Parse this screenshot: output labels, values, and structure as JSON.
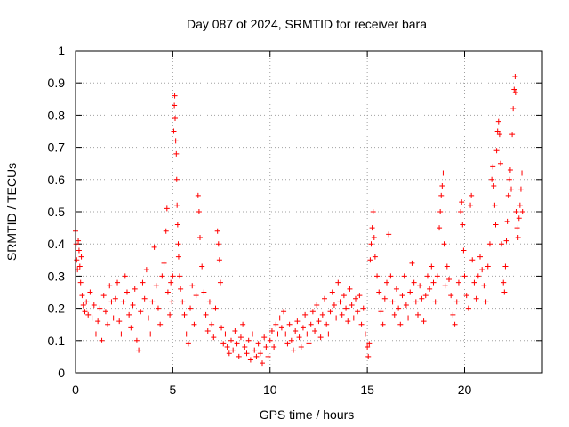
{
  "chart_data": {
    "type": "scatter",
    "title": "Day 087 of 2024, SRMTID for receiver bara",
    "xlabel": "GPS time / hours",
    "ylabel": "SRMTID / TECUs",
    "xlim": [
      0,
      24
    ],
    "ylim": [
      0,
      1
    ],
    "xticks": [
      0,
      5,
      10,
      15,
      20
    ],
    "yticks": [
      0,
      0.1,
      0.2,
      0.3,
      0.4,
      0.5,
      0.6,
      0.7,
      0.8,
      0.9,
      1
    ],
    "grid": true,
    "marker": "+",
    "series_color": "#ff0000",
    "series": [
      {
        "name": "SRMTID",
        "points": [
          [
            0.0,
            0.44
          ],
          [
            0.03,
            0.4
          ],
          [
            0.06,
            0.35
          ],
          [
            0.1,
            0.32
          ],
          [
            0.14,
            0.41
          ],
          [
            0.18,
            0.38
          ],
          [
            0.22,
            0.33
          ],
          [
            0.26,
            0.28
          ],
          [
            0.3,
            0.36
          ],
          [
            0.34,
            0.24
          ],
          [
            0.4,
            0.21
          ],
          [
            0.48,
            0.19
          ],
          [
            0.56,
            0.22
          ],
          [
            0.65,
            0.18
          ],
          [
            0.75,
            0.25
          ],
          [
            0.85,
            0.17
          ],
          [
            0.95,
            0.21
          ],
          [
            1.05,
            0.12
          ],
          [
            1.15,
            0.16
          ],
          [
            1.25,
            0.2
          ],
          [
            1.35,
            0.1
          ],
          [
            1.45,
            0.24
          ],
          [
            1.55,
            0.19
          ],
          [
            1.65,
            0.15
          ],
          [
            1.75,
            0.27
          ],
          [
            1.85,
            0.22
          ],
          [
            1.95,
            0.17
          ],
          [
            2.05,
            0.23
          ],
          [
            2.15,
            0.28
          ],
          [
            2.25,
            0.16
          ],
          [
            2.35,
            0.12
          ],
          [
            2.45,
            0.22
          ],
          [
            2.55,
            0.3
          ],
          [
            2.65,
            0.25
          ],
          [
            2.75,
            0.18
          ],
          [
            2.85,
            0.14
          ],
          [
            2.95,
            0.21
          ],
          [
            3.05,
            0.26
          ],
          [
            3.15,
            0.1
          ],
          [
            3.25,
            0.07
          ],
          [
            3.35,
            0.19
          ],
          [
            3.45,
            0.28
          ],
          [
            3.55,
            0.23
          ],
          [
            3.65,
            0.32
          ],
          [
            3.75,
            0.17
          ],
          [
            3.85,
            0.12
          ],
          [
            3.95,
            0.22
          ],
          [
            4.05,
            0.39
          ],
          [
            4.15,
            0.27
          ],
          [
            4.25,
            0.2
          ],
          [
            4.35,
            0.15
          ],
          [
            4.45,
            0.3
          ],
          [
            4.55,
            0.34
          ],
          [
            4.65,
            0.44
          ],
          [
            4.7,
            0.51
          ],
          [
            4.75,
            0.25
          ],
          [
            4.85,
            0.18
          ],
          [
            4.9,
            0.28
          ],
          [
            4.95,
            0.22
          ],
          [
            5.0,
            0.3
          ],
          [
            5.05,
            0.75
          ],
          [
            5.08,
            0.83
          ],
          [
            5.1,
            0.86
          ],
          [
            5.12,
            0.79
          ],
          [
            5.15,
            0.72
          ],
          [
            5.18,
            0.68
          ],
          [
            5.2,
            0.6
          ],
          [
            5.22,
            0.52
          ],
          [
            5.25,
            0.46
          ],
          [
            5.28,
            0.4
          ],
          [
            5.3,
            0.36
          ],
          [
            5.35,
            0.3
          ],
          [
            5.4,
            0.26
          ],
          [
            5.5,
            0.22
          ],
          [
            5.6,
            0.18
          ],
          [
            5.7,
            0.12
          ],
          [
            5.8,
            0.09
          ],
          [
            5.9,
            0.2
          ],
          [
            6.0,
            0.27
          ],
          [
            6.1,
            0.15
          ],
          [
            6.2,
            0.24
          ],
          [
            6.3,
            0.55
          ],
          [
            6.35,
            0.5
          ],
          [
            6.4,
            0.42
          ],
          [
            6.5,
            0.33
          ],
          [
            6.6,
            0.25
          ],
          [
            6.7,
            0.18
          ],
          [
            6.8,
            0.13
          ],
          [
            6.9,
            0.22
          ],
          [
            7.0,
            0.15
          ],
          [
            7.1,
            0.11
          ],
          [
            7.2,
            0.2
          ],
          [
            7.3,
            0.44
          ],
          [
            7.35,
            0.4
          ],
          [
            7.4,
            0.35
          ],
          [
            7.45,
            0.28
          ],
          [
            7.5,
            0.14
          ],
          [
            7.6,
            0.09
          ],
          [
            7.7,
            0.12
          ],
          [
            7.8,
            0.08
          ],
          [
            7.9,
            0.06
          ],
          [
            8.0,
            0.1
          ],
          [
            8.1,
            0.07
          ],
          [
            8.2,
            0.13
          ],
          [
            8.3,
            0.09
          ],
          [
            8.4,
            0.05
          ],
          [
            8.5,
            0.11
          ],
          [
            8.6,
            0.15
          ],
          [
            8.7,
            0.08
          ],
          [
            8.8,
            0.06
          ],
          [
            8.9,
            0.1
          ],
          [
            9.0,
            0.04
          ],
          [
            9.1,
            0.12
          ],
          [
            9.2,
            0.07
          ],
          [
            9.3,
            0.05
          ],
          [
            9.4,
            0.09
          ],
          [
            9.5,
            0.06
          ],
          [
            9.6,
            0.03
          ],
          [
            9.7,
            0.11
          ],
          [
            9.8,
            0.08
          ],
          [
            9.9,
            0.05
          ],
          [
            10.0,
            0.1
          ],
          [
            10.1,
            0.13
          ],
          [
            10.2,
            0.08
          ],
          [
            10.3,
            0.15
          ],
          [
            10.4,
            0.12
          ],
          [
            10.5,
            0.17
          ],
          [
            10.6,
            0.14
          ],
          [
            10.7,
            0.19
          ],
          [
            10.8,
            0.12
          ],
          [
            10.9,
            0.09
          ],
          [
            11.0,
            0.15
          ],
          [
            11.1,
            0.1
          ],
          [
            11.2,
            0.07
          ],
          [
            11.3,
            0.13
          ],
          [
            11.4,
            0.16
          ],
          [
            11.5,
            0.11
          ],
          [
            11.6,
            0.08
          ],
          [
            11.7,
            0.14
          ],
          [
            11.8,
            0.18
          ],
          [
            11.9,
            0.12
          ],
          [
            12.0,
            0.09
          ],
          [
            12.1,
            0.15
          ],
          [
            12.2,
            0.19
          ],
          [
            12.3,
            0.13
          ],
          [
            12.4,
            0.21
          ],
          [
            12.5,
            0.16
          ],
          [
            12.6,
            0.11
          ],
          [
            12.7,
            0.18
          ],
          [
            12.8,
            0.23
          ],
          [
            12.9,
            0.15
          ],
          [
            13.0,
            0.12
          ],
          [
            13.1,
            0.19
          ],
          [
            13.2,
            0.25
          ],
          [
            13.3,
            0.21
          ],
          [
            13.4,
            0.17
          ],
          [
            13.5,
            0.28
          ],
          [
            13.6,
            0.22
          ],
          [
            13.7,
            0.18
          ],
          [
            13.8,
            0.24
          ],
          [
            13.9,
            0.2
          ],
          [
            14.0,
            0.16
          ],
          [
            14.1,
            0.26
          ],
          [
            14.2,
            0.21
          ],
          [
            14.3,
            0.17
          ],
          [
            14.4,
            0.23
          ],
          [
            14.5,
            0.19
          ],
          [
            14.6,
            0.24
          ],
          [
            14.7,
            0.15
          ],
          [
            14.8,
            0.2
          ],
          [
            14.9,
            0.12
          ],
          [
            15.0,
            0.08
          ],
          [
            15.05,
            0.05
          ],
          [
            15.1,
            0.09
          ],
          [
            15.15,
            0.35
          ],
          [
            15.2,
            0.4
          ],
          [
            15.25,
            0.45
          ],
          [
            15.3,
            0.5
          ],
          [
            15.35,
            0.42
          ],
          [
            15.4,
            0.36
          ],
          [
            15.5,
            0.3
          ],
          [
            15.6,
            0.25
          ],
          [
            15.7,
            0.19
          ],
          [
            15.8,
            0.15
          ],
          [
            15.9,
            0.23
          ],
          [
            16.0,
            0.28
          ],
          [
            16.1,
            0.43
          ],
          [
            16.2,
            0.3
          ],
          [
            16.3,
            0.22
          ],
          [
            16.4,
            0.18
          ],
          [
            16.5,
            0.26
          ],
          [
            16.6,
            0.2
          ],
          [
            16.7,
            0.15
          ],
          [
            16.8,
            0.24
          ],
          [
            16.9,
            0.3
          ],
          [
            17.0,
            0.21
          ],
          [
            17.1,
            0.17
          ],
          [
            17.2,
            0.25
          ],
          [
            17.3,
            0.34
          ],
          [
            17.4,
            0.28
          ],
          [
            17.5,
            0.22
          ],
          [
            17.6,
            0.18
          ],
          [
            17.7,
            0.27
          ],
          [
            17.8,
            0.23
          ],
          [
            17.9,
            0.16
          ],
          [
            18.0,
            0.24
          ],
          [
            18.1,
            0.3
          ],
          [
            18.2,
            0.26
          ],
          [
            18.3,
            0.33
          ],
          [
            18.4,
            0.28
          ],
          [
            18.5,
            0.22
          ],
          [
            18.6,
            0.3
          ],
          [
            18.7,
            0.45
          ],
          [
            18.75,
            0.5
          ],
          [
            18.8,
            0.55
          ],
          [
            18.85,
            0.58
          ],
          [
            18.9,
            0.62
          ],
          [
            18.95,
            0.4
          ],
          [
            19.0,
            0.27
          ],
          [
            19.1,
            0.33
          ],
          [
            19.2,
            0.29
          ],
          [
            19.3,
            0.24
          ],
          [
            19.4,
            0.18
          ],
          [
            19.5,
            0.15
          ],
          [
            19.6,
            0.22
          ],
          [
            19.7,
            0.28
          ],
          [
            19.8,
            0.5
          ],
          [
            19.85,
            0.53
          ],
          [
            19.9,
            0.46
          ],
          [
            19.95,
            0.38
          ],
          [
            20.0,
            0.3
          ],
          [
            20.1,
            0.24
          ],
          [
            20.2,
            0.2
          ],
          [
            20.3,
            0.52
          ],
          [
            20.35,
            0.55
          ],
          [
            20.4,
            0.35
          ],
          [
            20.5,
            0.28
          ],
          [
            20.6,
            0.23
          ],
          [
            20.7,
            0.3
          ],
          [
            20.8,
            0.36
          ],
          [
            20.9,
            0.32
          ],
          [
            21.0,
            0.27
          ],
          [
            21.1,
            0.22
          ],
          [
            21.2,
            0.33
          ],
          [
            21.3,
            0.4
          ],
          [
            21.4,
            0.6
          ],
          [
            21.45,
            0.64
          ],
          [
            21.5,
            0.58
          ],
          [
            21.55,
            0.52
          ],
          [
            21.6,
            0.46
          ],
          [
            21.65,
            0.69
          ],
          [
            21.7,
            0.75
          ],
          [
            21.75,
            0.78
          ],
          [
            21.8,
            0.74
          ],
          [
            21.85,
            0.65
          ],
          [
            21.9,
            0.4
          ],
          [
            22.0,
            0.28
          ],
          [
            22.05,
            0.25
          ],
          [
            22.1,
            0.33
          ],
          [
            22.15,
            0.41
          ],
          [
            22.2,
            0.47
          ],
          [
            22.25,
            0.55
          ],
          [
            22.3,
            0.6
          ],
          [
            22.35,
            0.63
          ],
          [
            22.4,
            0.57
          ],
          [
            22.45,
            0.74
          ],
          [
            22.5,
            0.82
          ],
          [
            22.55,
            0.88
          ],
          [
            22.6,
            0.92
          ],
          [
            22.62,
            0.87
          ],
          [
            22.65,
            0.5
          ],
          [
            22.7,
            0.45
          ],
          [
            22.75,
            0.42
          ],
          [
            22.8,
            0.48
          ],
          [
            22.85,
            0.52
          ],
          [
            22.9,
            0.57
          ],
          [
            22.95,
            0.62
          ],
          [
            22.98,
            0.5
          ]
        ]
      }
    ]
  }
}
